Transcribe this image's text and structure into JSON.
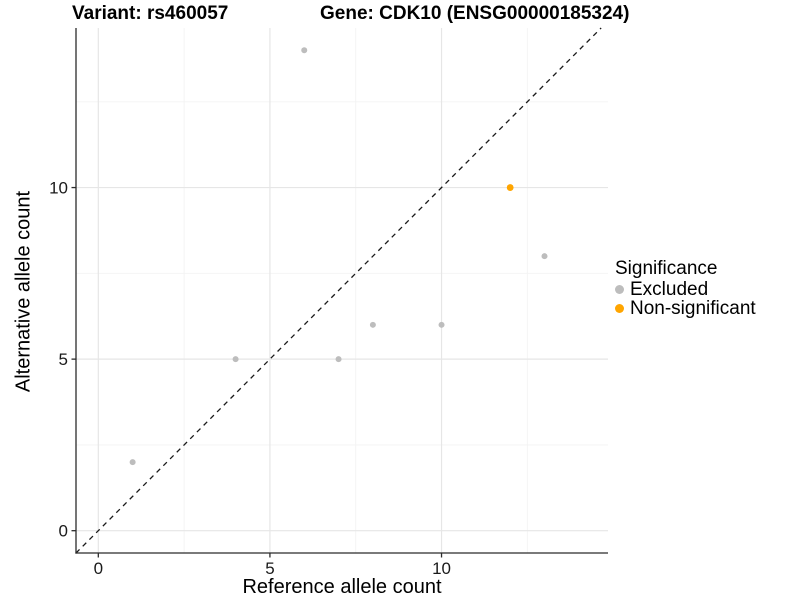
{
  "title": {
    "variant": "Variant: rs460057",
    "gene": "Gene: CDK10 (ENSG00000185324)"
  },
  "axes": {
    "x": {
      "label": "Reference allele count",
      "ticks": [
        0,
        5,
        10
      ],
      "minor_ticks": [
        2.5,
        7.5,
        12.5
      ]
    },
    "y": {
      "label": "Alternative allele count",
      "ticks": [
        0,
        5,
        10
      ],
      "minor_ticks": [
        2.5,
        7.5,
        12.5
      ]
    }
  },
  "legend": {
    "title": "Significance",
    "items": [
      {
        "label": "Excluded",
        "color": "#bdbdbd"
      },
      {
        "label": "Non-significant",
        "color": "#ffa500"
      }
    ]
  },
  "colors": {
    "grid_major": "#e6e6e6",
    "grid_minor": "#f3f3f3",
    "axis_line": "#2b2b2b",
    "tick_mark": "#2b2b2b",
    "tick_text": "#1a1a1a",
    "identity_line": "#1a1a1a",
    "excluded_point": "#bdbdbd",
    "non_significant_point": "#ffa500"
  },
  "chart_data": {
    "type": "scatter",
    "title": "Variant: rs460057 / Gene: CDK10 (ENSG00000185324)",
    "xlabel": "Reference allele count",
    "ylabel": "Alternative allele count",
    "xlim": [
      -0.65,
      14.85
    ],
    "ylim": [
      -0.65,
      14.65
    ],
    "x_major_ticks": [
      0,
      5,
      10
    ],
    "y_major_ticks": [
      0,
      5,
      10
    ],
    "x_minor_ticks": [
      2.5,
      7.5,
      12.5
    ],
    "y_minor_ticks": [
      2.5,
      7.5,
      12.5
    ],
    "grid": true,
    "legend_position": "right",
    "identity_line": {
      "style": "dashed",
      "slope": 1,
      "intercept": 0,
      "color": "#1a1a1a"
    },
    "series": [
      {
        "name": "Excluded",
        "color": "#bdbdbd",
        "point_radius": 3,
        "points": [
          {
            "x": 1,
            "y": 2
          },
          {
            "x": 4,
            "y": 5
          },
          {
            "x": 6,
            "y": 14
          },
          {
            "x": 7,
            "y": 5
          },
          {
            "x": 8,
            "y": 6
          },
          {
            "x": 10,
            "y": 6
          },
          {
            "x": 13,
            "y": 8
          }
        ]
      },
      {
        "name": "Non-significant",
        "color": "#ffa500",
        "point_radius": 3.4,
        "points": [
          {
            "x": 12,
            "y": 10
          }
        ]
      }
    ]
  }
}
